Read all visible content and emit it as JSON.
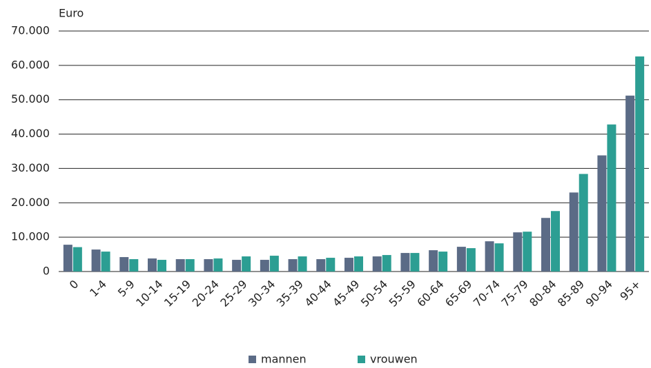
{
  "chart_data": {
    "type": "bar",
    "y_label": "Euro",
    "categories": [
      "0",
      "1-4",
      "5-9",
      "10-14",
      "15-19",
      "20-24",
      "25-29",
      "30-34",
      "35-39",
      "40-44",
      "45-49",
      "50-54",
      "55-59",
      "60-64",
      "65-69",
      "70-74",
      "75-79",
      "80-84",
      "85-89",
      "90-94",
      "95+"
    ],
    "series": [
      {
        "name": "mannen",
        "color": "#5b6b86",
        "values": [
          7800,
          6400,
          4200,
          3800,
          3600,
          3600,
          3400,
          3400,
          3600,
          3600,
          4000,
          4400,
          5400,
          6200,
          7200,
          8800,
          11400,
          15600,
          23000,
          33800,
          51200
        ]
      },
      {
        "name": "vrouwen",
        "color": "#2c9e93",
        "values": [
          7100,
          5800,
          3600,
          3400,
          3600,
          3800,
          4400,
          4600,
          4400,
          4000,
          4400,
          4800,
          5400,
          5800,
          6800,
          8200,
          11600,
          17600,
          28400,
          42800,
          62600
        ]
      }
    ],
    "ylim": [
      0,
      70000
    ],
    "yticks": [
      0,
      {
        "value": 10000,
        "label": "10.000"
      },
      {
        "value": 20000,
        "label": "20.000"
      },
      {
        "value": 30000,
        "label": "30.000"
      },
      {
        "value": 40000,
        "label": "40.000"
      },
      {
        "value": 50000,
        "label": "50.000"
      },
      {
        "value": 60000,
        "label": "60.000"
      },
      {
        "value": 70000,
        "label": "70.000"
      }
    ],
    "grid": true,
    "legend": "bottom"
  }
}
